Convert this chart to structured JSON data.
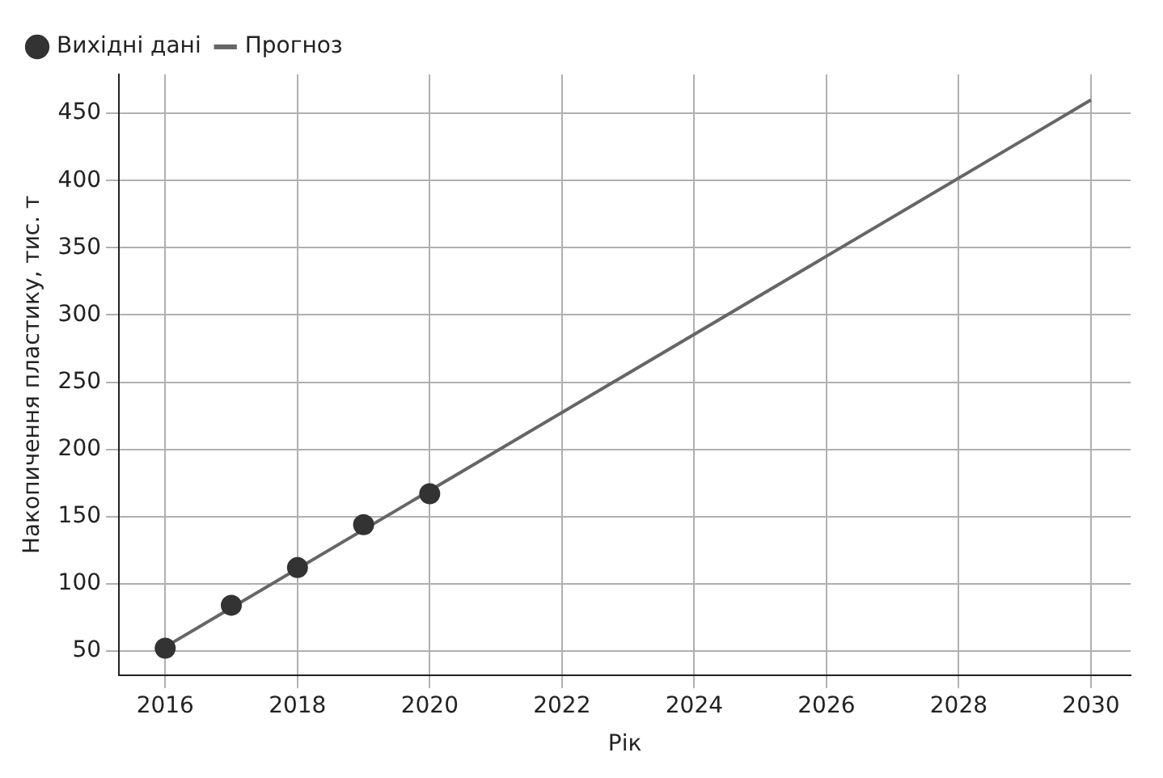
{
  "chart_data": {
    "type": "scatter",
    "xlabel": "Рік",
    "ylabel": "Накопичення пластику, тис. т",
    "xlim": [
      2015.3,
      2030.6
    ],
    "xticks": [
      2016,
      2018,
      2020,
      2022,
      2024,
      2026,
      2028,
      2030
    ],
    "ylim": [
      32,
      479
    ],
    "yticks": [
      50,
      100,
      150,
      200,
      250,
      300,
      350,
      400,
      450
    ],
    "grid": true,
    "legend": "top left",
    "series": [
      {
        "name": "Вихідні дані",
        "type": "scatter",
        "color": "#333333",
        "marker": "circle",
        "x": [
          2016,
          2017,
          2018,
          2019,
          2020
        ],
        "values": [
          52,
          84,
          112,
          144,
          167
        ]
      },
      {
        "name": "Прогноз",
        "type": "line",
        "color": "#666666",
        "line_style": "solid",
        "marker": "none",
        "x": [
          2016,
          2030
        ],
        "values": [
          53,
          460
        ]
      }
    ]
  }
}
